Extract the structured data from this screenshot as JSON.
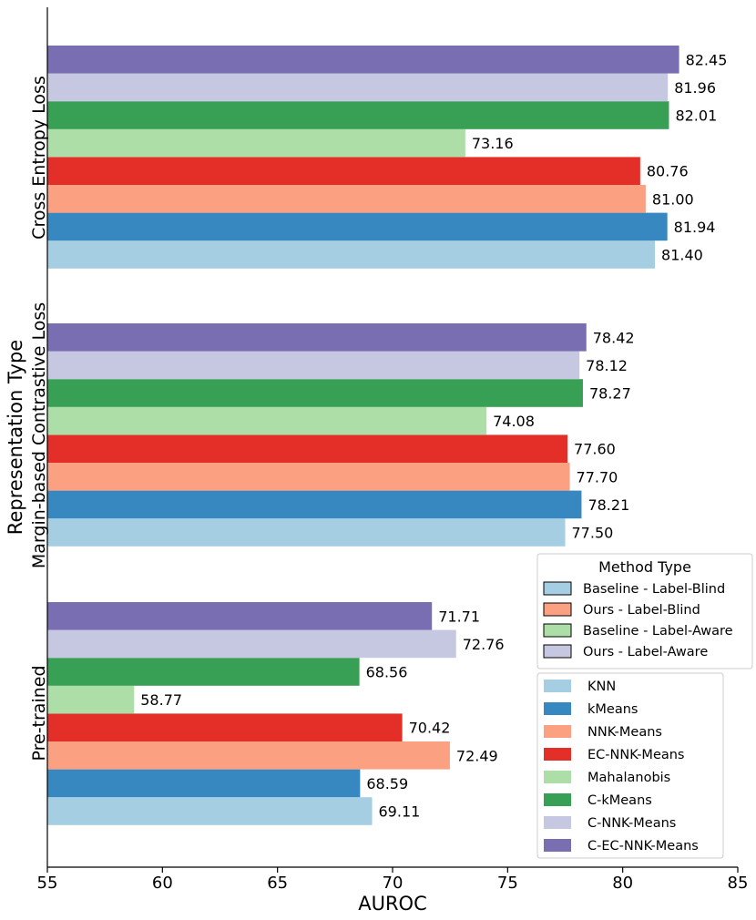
{
  "chart_data": {
    "type": "bar",
    "orientation": "horizontal",
    "xlabel": "AUROC",
    "ylabel": "Representation Type",
    "xlim": [
      55,
      85
    ],
    "xticks": [
      55,
      60,
      65,
      70,
      75,
      80,
      85
    ],
    "groups": [
      "Cross Entropy Loss",
      "Margin-based Contrastive Loss",
      "Pre-trained"
    ],
    "methods": [
      "KNN",
      "kMeans",
      "NNK-Means",
      "EC-NNK-Means",
      "Mahalanobis",
      "C-kMeans",
      "C-NNK-Means",
      "C-EC-NNK-Means"
    ],
    "colors": [
      "#a6cee3",
      "#3787c0",
      "#fca082",
      "#e32f27",
      "#aedea7",
      "#37a055",
      "#c6c7e1",
      "#796eb2"
    ],
    "series": [
      {
        "name": "KNN",
        "values": [
          81.4,
          77.5,
          69.11
        ]
      },
      {
        "name": "kMeans",
        "values": [
          81.94,
          78.21,
          68.59
        ]
      },
      {
        "name": "NNK-Means",
        "values": [
          81.0,
          77.7,
          72.49
        ]
      },
      {
        "name": "EC-NNK-Means",
        "values": [
          80.76,
          77.6,
          70.42
        ]
      },
      {
        "name": "Mahalanobis",
        "values": [
          73.16,
          74.08,
          58.77
        ]
      },
      {
        "name": "C-kMeans",
        "values": [
          82.01,
          78.27,
          68.56
        ]
      },
      {
        "name": "C-NNK-Means",
        "values": [
          81.96,
          78.12,
          72.76
        ]
      },
      {
        "name": "C-EC-NNK-Means",
        "values": [
          82.45,
          78.42,
          71.71
        ]
      }
    ],
    "value_labels": [
      [
        "81.40",
        "77.50",
        "69.11"
      ],
      [
        "81.94",
        "78.21",
        "68.59"
      ],
      [
        "81.00",
        "77.70",
        "72.49"
      ],
      [
        "80.76",
        "77.60",
        "70.42"
      ],
      [
        "73.16",
        "74.08",
        "58.77"
      ],
      [
        "82.01",
        "78.27",
        "68.56"
      ],
      [
        "81.96",
        "78.12",
        "72.76"
      ],
      [
        "82.45",
        "78.42",
        "71.71"
      ]
    ],
    "method_type_legend": {
      "title": "Method Type",
      "placement": "lower-right",
      "entries": [
        {
          "label": "Baseline - Label-Blind",
          "color": "#a6cee3"
        },
        {
          "label": "Ours - Label-Blind",
          "color": "#fca082"
        },
        {
          "label": "Baseline - Label-Aware",
          "color": "#aedea7"
        },
        {
          "label": "Ours - Label-Aware",
          "color": "#c6c7e1"
        }
      ]
    },
    "method_legend": {
      "placement": "lower-right",
      "entries": [
        "KNN",
        "kMeans",
        "NNK-Means",
        "EC-NNK-Means",
        "Mahalanobis",
        "C-kMeans",
        "C-NNK-Means",
        "C-EC-NNK-Means"
      ]
    },
    "grid": false
  }
}
